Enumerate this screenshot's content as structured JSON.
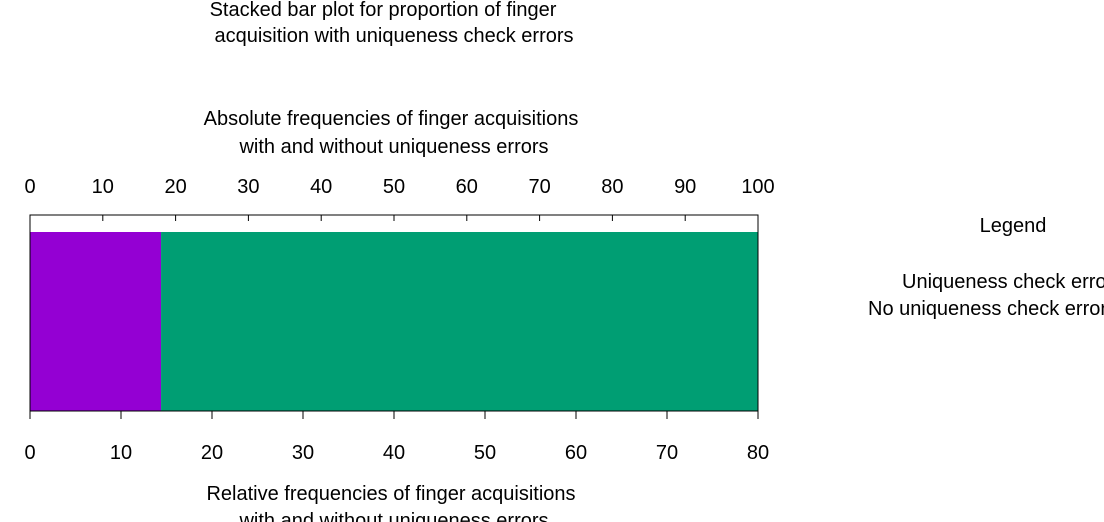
{
  "chart_data": {
    "type": "bar",
    "orientation": "horizontal",
    "stacked": true,
    "title": [
      "Stacked bar plot for proportion of finger",
      "acquisition with uniqueness check errors"
    ],
    "top_axis": {
      "label": [
        "Absolute frequencies of finger acquisitions",
        "with and without uniqueness errors"
      ],
      "range": [
        0,
        100
      ],
      "ticks": [
        "0",
        "10",
        "20",
        "30",
        "40",
        "50",
        "60",
        "70",
        "80",
        "90",
        "100"
      ]
    },
    "bottom_axis": {
      "label": [
        "Relative frequencies of finger acquisitions",
        "with and without uniqueness errors"
      ],
      "range": [
        0,
        80
      ],
      "ticks": [
        "0",
        "10",
        "20",
        "30",
        "40",
        "50",
        "60",
        "70",
        "80"
      ]
    },
    "series": [
      {
        "name": "Uniqueness check errors",
        "values": [
          14.4
        ],
        "color": "#9400d3"
      },
      {
        "name": "No uniqueness check errors",
        "values": [
          65.6
        ],
        "color": "#009e73"
      }
    ],
    "legend": {
      "title": "Legend",
      "entries": [
        "Uniqueness check errors",
        "No uniqueness check errors"
      ],
      "placement": "right"
    },
    "grid": false
  }
}
